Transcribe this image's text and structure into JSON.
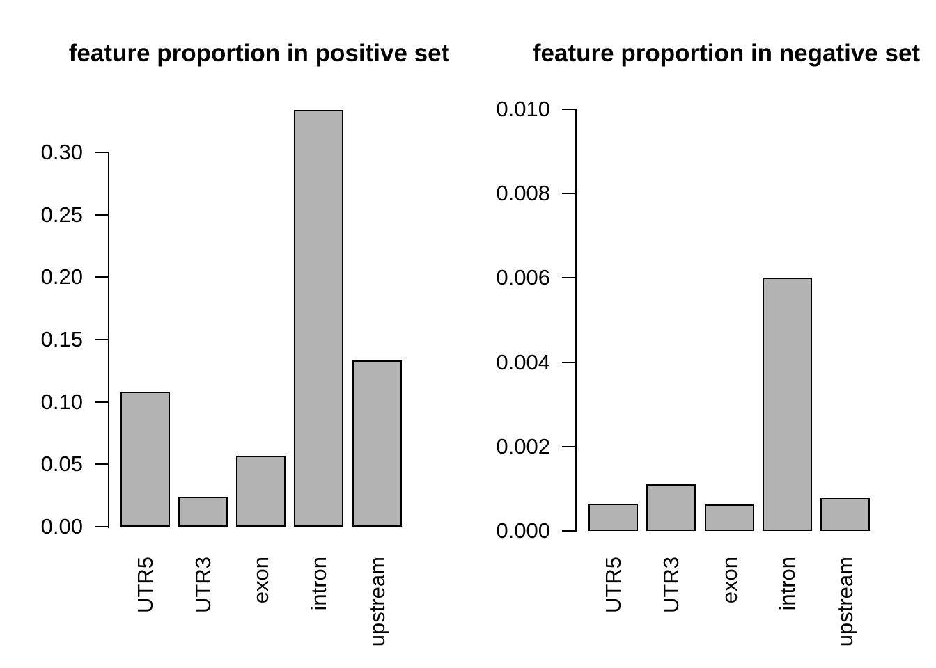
{
  "figure": {
    "background": "#ffffff",
    "bar_fill": "#b3b3b3",
    "bar_border": "#000000",
    "axis_color": "#000000"
  },
  "chart_data": [
    {
      "type": "bar",
      "title": "feature proportion in positive set",
      "categories": [
        "UTR5",
        "UTR3",
        "exon",
        "intron",
        "upstream"
      ],
      "values": [
        0.108,
        0.024,
        0.057,
        0.334,
        0.133
      ],
      "xlabel": "",
      "ylabel": "",
      "ylim": [
        0,
        0.3
      ],
      "ytick_values": [
        0,
        0.05,
        0.1,
        0.15,
        0.2,
        0.25,
        0.3
      ],
      "ytick_labels": [
        "0.00",
        "0.05",
        "0.10",
        "0.15",
        "0.20",
        "0.25",
        "0.30"
      ],
      "grid": false,
      "legend_position": "none",
      "bar_fill": "#b3b3b3",
      "bar_border": "#000000"
    },
    {
      "type": "bar",
      "title": "feature proportion in negative set",
      "categories": [
        "UTR5",
        "UTR3",
        "exon",
        "intron",
        "upstream"
      ],
      "values": [
        0.00065,
        0.0011,
        0.00062,
        0.006,
        0.0008
      ],
      "xlabel": "",
      "ylabel": "",
      "ylim": [
        0,
        0.01
      ],
      "ytick_values": [
        0,
        0.002,
        0.004,
        0.006,
        0.008,
        0.01
      ],
      "ytick_labels": [
        "0.000",
        "0.002",
        "0.004",
        "0.006",
        "0.008",
        "0.010"
      ],
      "grid": false,
      "legend_position": "none",
      "bar_fill": "#b3b3b3",
      "bar_border": "#000000"
    }
  ]
}
